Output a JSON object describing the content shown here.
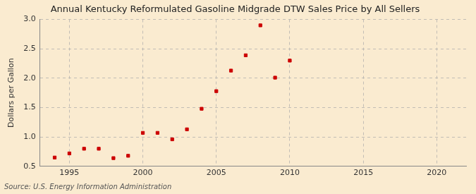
{
  "chart_data": {
    "type": "scatter",
    "title": "Annual Kentucky Reformulated Gasoline Midgrade DTW Sales Price by All Sellers",
    "ylabel": "Dollars per Gallon",
    "annotation": "Source: U.S. Energy Information Administration",
    "x": [
      1994,
      1995,
      1996,
      1997,
      1998,
      1999,
      2000,
      2001,
      2002,
      2003,
      2004,
      2005,
      2006,
      2007,
      2008,
      2009,
      2010
    ],
    "values": [
      0.65,
      0.72,
      0.8,
      0.8,
      0.64,
      0.68,
      1.07,
      1.07,
      0.96,
      1.13,
      1.48,
      1.78,
      2.13,
      2.39,
      2.9,
      2.01,
      2.3
    ],
    "color": "#cc0000",
    "marker": "square",
    "xlim": [
      1993,
      2022
    ],
    "ylim": [
      0.5,
      3.0
    ],
    "xticks": [
      1995,
      2000,
      2005,
      2010,
      2015,
      2020
    ],
    "yticks": [
      0.5,
      {
        "value": 1.0,
        "label": "1.0"
      },
      1.5,
      {
        "value": 2.0,
        "label": "2.0"
      },
      2.5,
      {
        "value": 3.0,
        "label": "3.0"
      }
    ],
    "grid": true
  }
}
